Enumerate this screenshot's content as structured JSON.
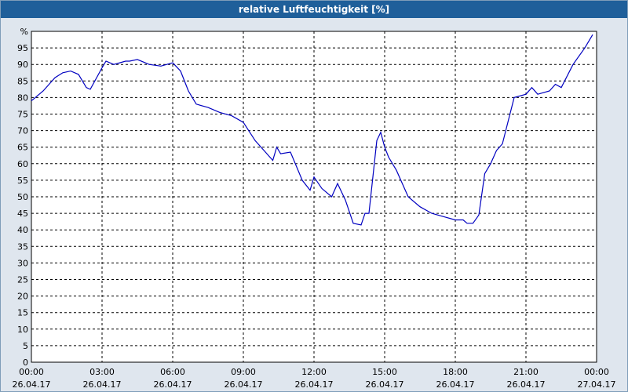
{
  "title": "relative Luftfeuchtigkeit [%]",
  "colors": {
    "titlebar": "#1f5f9a",
    "background": "#dfe6ee",
    "plot": "#ffffff",
    "series": "#0000c0",
    "grid": "#000000"
  },
  "chart_data": {
    "type": "line",
    "title": "relative Luftfeuchtigkeit [%]",
    "xlabel": "",
    "ylabel": "%",
    "ylim": [
      0,
      100
    ],
    "yticks": [
      "0",
      "5",
      "10",
      "15",
      "20",
      "25",
      "30",
      "35",
      "40",
      "45",
      "50",
      "55",
      "60",
      "65",
      "70",
      "75",
      "80",
      "85",
      "90",
      "95",
      "%"
    ],
    "xticks": [
      {
        "time": "00:00",
        "date": "26.04.17"
      },
      {
        "time": "03:00",
        "date": "26.04.17"
      },
      {
        "time": "06:00",
        "date": "26.04.17"
      },
      {
        "time": "09:00",
        "date": "26.04.17"
      },
      {
        "time": "12:00",
        "date": "26.04.17"
      },
      {
        "time": "15:00",
        "date": "26.04.17"
      },
      {
        "time": "18:00",
        "date": "26.04.17"
      },
      {
        "time": "21:00",
        "date": "26.04.17"
      },
      {
        "time": "00:00",
        "date": "27.04.17"
      }
    ],
    "grid": true,
    "series": [
      {
        "x": [
          "00:00",
          "00:30",
          "01:00",
          "01:20",
          "01:40",
          "02:00",
          "02:10",
          "02:20",
          "02:30",
          "03:00",
          "03:10",
          "03:30",
          "04:00",
          "04:10",
          "04:30",
          "05:00",
          "05:30",
          "06:00",
          "06:20",
          "06:40",
          "07:00",
          "07:30",
          "08:00",
          "08:30",
          "09:00",
          "09:30",
          "10:00",
          "10:15",
          "10:25",
          "10:35",
          "11:00",
          "11:30",
          "11:50",
          "12:00",
          "12:20",
          "12:45",
          "13:00",
          "13:20",
          "13:40",
          "14:00",
          "14:10",
          "14:20",
          "14:40",
          "14:50",
          "15:00",
          "15:10",
          "15:30",
          "16:00",
          "16:30",
          "17:00",
          "17:30",
          "18:00",
          "18:10",
          "18:20",
          "18:30",
          "18:45",
          "19:00",
          "19:15",
          "19:30",
          "19:45",
          "20:00",
          "20:15",
          "20:30",
          "21:00",
          "21:15",
          "21:30",
          "22:00",
          "22:15",
          "22:30",
          "23:00",
          "23:30",
          "23:50"
        ],
        "values": [
          79,
          82,
          86,
          87.5,
          88,
          87,
          85,
          83,
          82.5,
          89,
          91,
          90,
          91,
          91,
          91.5,
          90,
          89.5,
          90.5,
          88,
          82,
          78,
          77,
          75.5,
          74.5,
          72.5,
          67,
          63,
          61,
          65,
          63,
          63.5,
          55,
          52,
          56,
          52.5,
          50,
          54,
          49,
          42,
          41.5,
          45,
          45,
          67,
          69.5,
          65,
          62,
          58,
          50,
          47,
          45,
          44,
          43,
          43,
          43,
          42,
          42,
          44.5,
          57,
          60,
          64,
          66,
          73,
          80,
          81,
          83,
          81,
          82,
          84,
          83,
          90,
          95,
          99
        ]
      }
    ]
  }
}
